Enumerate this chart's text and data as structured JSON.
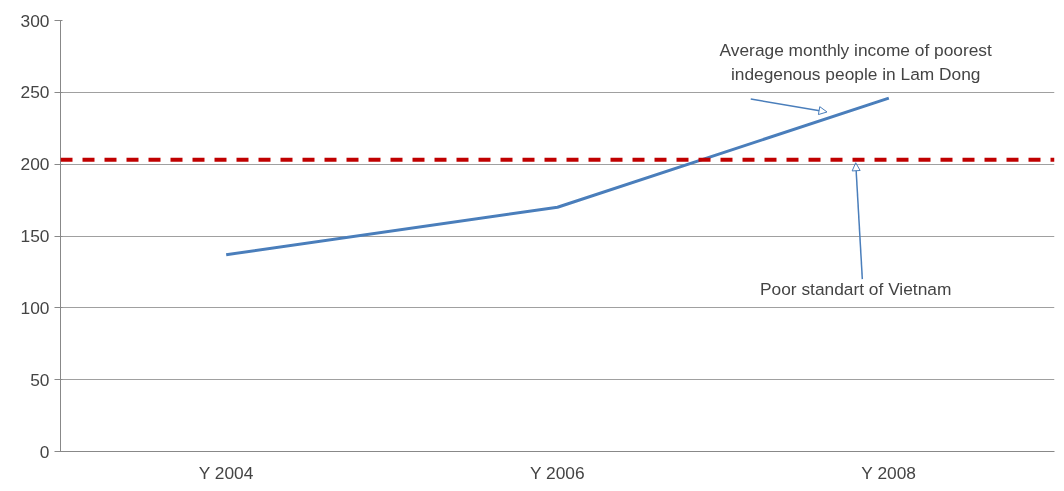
{
  "chart_data": {
    "type": "line",
    "categories": [
      "Y 2004",
      "Y 2006",
      "Y 2008"
    ],
    "series": [
      {
        "name": "Average monthly income of poorest indegenous people in Lam Dong",
        "color": "#4a7ebb",
        "values": [
          137,
          170,
          246
        ]
      }
    ],
    "ylim": [
      0,
      300
    ],
    "yticks": [
      0,
      50,
      100,
      150,
      200,
      250,
      300
    ],
    "grid": "y",
    "marker": "none",
    "line_style": "solid",
    "ref_lines": [
      {
        "axis": "y",
        "value": 203,
        "label": "Poor standart of Vietnam",
        "color": "#c00000",
        "line_style": "dashed"
      }
    ]
  }
}
